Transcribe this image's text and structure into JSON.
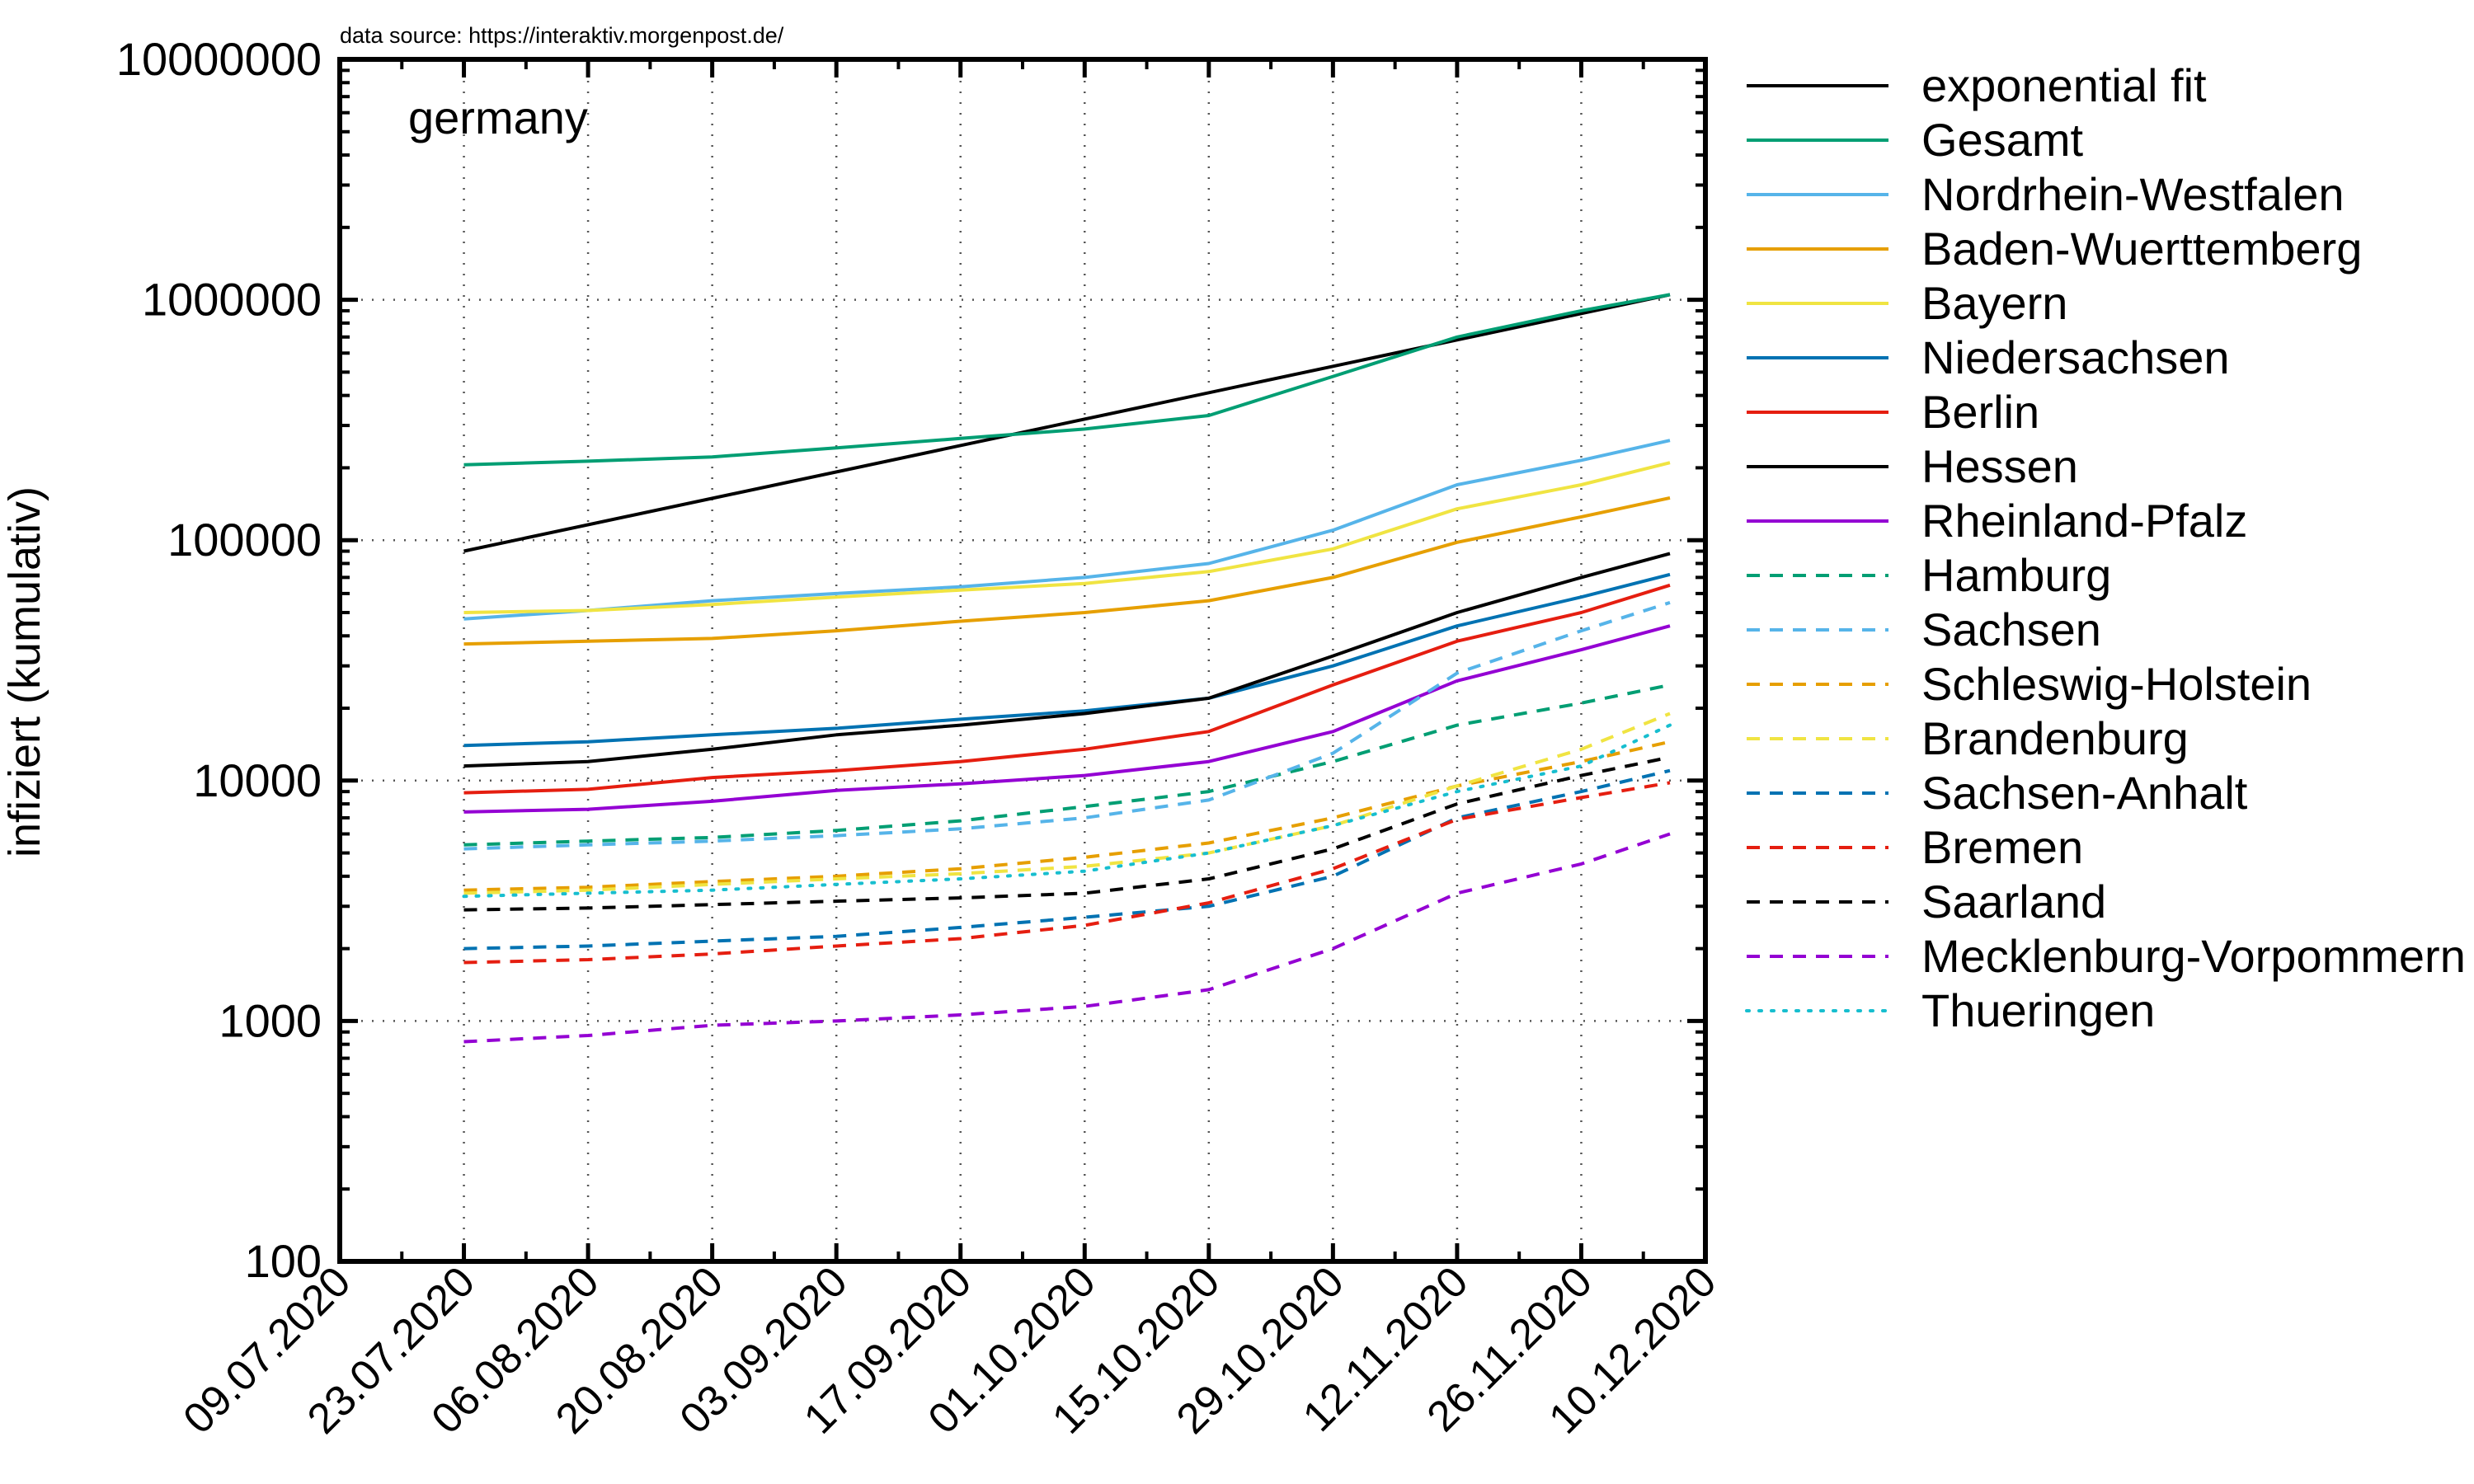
{
  "chart_data": {
    "type": "line",
    "title": "germany",
    "source_note": "data source: https://interaktiv.morgenpost.de/",
    "ylabel": "infiziert (kumulativ)",
    "xlabel": "",
    "x_range": [
      "09.07.2020",
      "10.12.2020"
    ],
    "ylim": [
      100,
      10000000
    ],
    "y_scale": "log",
    "grid": true,
    "legend_position": "right-outside",
    "x_ticks": [
      "09.07.2020",
      "23.07.2020",
      "06.08.2020",
      "20.08.2020",
      "03.09.2020",
      "17.09.2020",
      "01.10.2020",
      "15.10.2020",
      "29.10.2020",
      "12.11.2020",
      "26.11.2020",
      "10.12.2020"
    ],
    "y_ticks": [
      "100",
      "1000",
      "10000",
      "100000",
      "1000000",
      "10000000"
    ],
    "sample_dates": [
      "23.07.2020",
      "06.08.2020",
      "20.08.2020",
      "03.09.2020",
      "17.09.2020",
      "01.10.2020",
      "15.10.2020",
      "29.10.2020",
      "12.11.2020",
      "26.11.2020",
      "06.12.2020"
    ],
    "series": [
      {
        "name": "exponential fit",
        "color": "#000000",
        "style": "solid",
        "x": [
          "23.07.2020",
          "06.12.2020"
        ],
        "values": [
          90000,
          1050000
        ]
      },
      {
        "name": "Gesamt",
        "color": "#009e73",
        "style": "solid",
        "values": [
          206000,
          213000,
          222000,
          242000,
          265000,
          290000,
          330000,
          480000,
          700000,
          900000,
          1050000
        ]
      },
      {
        "name": "Nordrhein-Westfalen",
        "color": "#56b4e9",
        "style": "solid",
        "values": [
          47000,
          51000,
          56000,
          60000,
          64000,
          70000,
          80000,
          110000,
          170000,
          215000,
          260000
        ]
      },
      {
        "name": "Baden-Wuerttemberg",
        "color": "#e69f00",
        "style": "solid",
        "values": [
          37000,
          38000,
          39000,
          42000,
          46000,
          50000,
          56000,
          70000,
          98000,
          125000,
          150000
        ]
      },
      {
        "name": "Bayern",
        "color": "#f0e442",
        "style": "solid",
        "values": [
          50000,
          51000,
          54000,
          58000,
          62000,
          66000,
          74000,
          92000,
          135000,
          170000,
          210000
        ]
      },
      {
        "name": "Niedersachsen",
        "color": "#0072b2",
        "style": "solid",
        "values": [
          14000,
          14500,
          15500,
          16500,
          18000,
          19500,
          22000,
          30000,
          44000,
          58000,
          72000
        ]
      },
      {
        "name": "Berlin",
        "color": "#e51e10",
        "style": "solid",
        "values": [
          8900,
          9200,
          10300,
          11000,
          12000,
          13500,
          16000,
          25000,
          38000,
          50000,
          65000
        ]
      },
      {
        "name": "Hessen",
        "color": "#000000",
        "style": "solid",
        "values": [
          11500,
          12000,
          13500,
          15500,
          17000,
          19000,
          22000,
          33000,
          50000,
          70000,
          88000
        ]
      },
      {
        "name": "Rheinland-Pfalz",
        "color": "#9400d3",
        "style": "solid",
        "values": [
          7400,
          7600,
          8200,
          9100,
          9700,
          10500,
          12000,
          16000,
          26000,
          35000,
          44000
        ]
      },
      {
        "name": "Hamburg",
        "color": "#009e73",
        "style": "dashed",
        "values": [
          5400,
          5600,
          5800,
          6200,
          6800,
          7800,
          9000,
          12000,
          17000,
          21000,
          25000
        ]
      },
      {
        "name": "Sachsen",
        "color": "#56b4e9",
        "style": "dashed",
        "values": [
          5200,
          5400,
          5600,
          5900,
          6300,
          7000,
          8300,
          13000,
          28000,
          42000,
          55000
        ]
      },
      {
        "name": "Schleswig-Holstein",
        "color": "#e69f00",
        "style": "dashed",
        "values": [
          3500,
          3600,
          3800,
          4000,
          4300,
          4800,
          5500,
          7000,
          9500,
          12000,
          14500
        ]
      },
      {
        "name": "Brandenburg",
        "color": "#f0e442",
        "style": "dashed",
        "values": [
          3400,
          3500,
          3700,
          3900,
          4100,
          4400,
          5000,
          6500,
          9500,
          13500,
          19000
        ]
      },
      {
        "name": "Sachsen-Anhalt",
        "color": "#0072b2",
        "style": "dashed",
        "values": [
          2000,
          2050,
          2150,
          2250,
          2450,
          2700,
          3000,
          4000,
          7000,
          9000,
          11000
        ]
      },
      {
        "name": "Bremen",
        "color": "#e51e10",
        "style": "dashed",
        "values": [
          1750,
          1800,
          1900,
          2050,
          2200,
          2500,
          3100,
          4300,
          6900,
          8500,
          9800
        ]
      },
      {
        "name": "Saarland",
        "color": "#000000",
        "style": "dashed",
        "values": [
          2900,
          2950,
          3050,
          3150,
          3250,
          3400,
          3900,
          5200,
          8000,
          10500,
          12500
        ]
      },
      {
        "name": "Mecklenburg-Vorpommern",
        "color": "#9400d3",
        "style": "dashed",
        "values": [
          820,
          870,
          960,
          1000,
          1060,
          1150,
          1350,
          2000,
          3400,
          4500,
          6000
        ]
      },
      {
        "name": "Thueringen",
        "color": "#17becf",
        "style": "dotted",
        "values": [
          3300,
          3400,
          3500,
          3700,
          3900,
          4200,
          5000,
          6500,
          9000,
          11500,
          17000
        ]
      }
    ]
  }
}
